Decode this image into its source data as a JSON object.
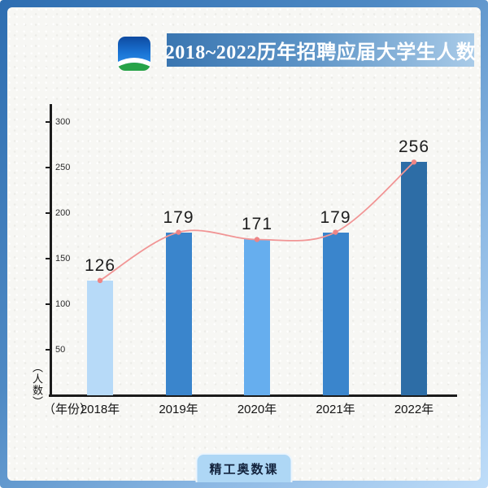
{
  "header": {
    "title": "2018~2022历年招聘应届大学生人数",
    "logo_name": "blue-green-hill-logo"
  },
  "footer": {
    "badge": "精工奥数课"
  },
  "chart_data": {
    "type": "bar",
    "overlay": "line",
    "title": "2018~2022历年招聘应届大学生人数",
    "categories": [
      "2018年",
      "2019年",
      "2020年",
      "2021年",
      "2022年"
    ],
    "values": [
      126,
      179,
      171,
      179,
      256
    ],
    "value_labels": [
      "126",
      "179",
      "171",
      "179",
      "256"
    ],
    "yticks": [
      50,
      100,
      150,
      200,
      250,
      300
    ],
    "ylim": [
      0,
      320
    ],
    "xlabel": "（年份）",
    "ylabel": "（人数）",
    "grid": false,
    "legend": "none",
    "bar_colors": [
      "#b7daf8",
      "#3a85cc",
      "#66aeee",
      "#3a85cc",
      "#2d6da6"
    ],
    "line_color": "#f19595",
    "point_color": "#ee8585",
    "axis_color": "#1b1b1b"
  }
}
